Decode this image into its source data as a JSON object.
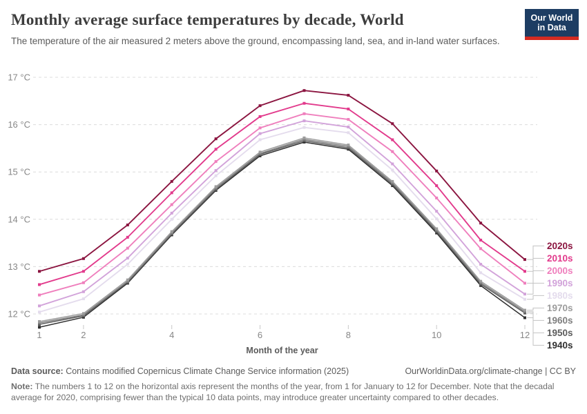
{
  "header": {
    "title": "Monthly average surface temperatures by decade, World",
    "subtitle": "The temperature of the air measured 2 meters above the ground, encompassing land, sea, and in-land water surfaces.",
    "logo": {
      "line1": "Our World",
      "line2": "in Data",
      "bg_color": "#1d3d63",
      "bar_color": "#d42b21"
    }
  },
  "chart_data": {
    "type": "line",
    "title": "Monthly average surface temperatures by decade, World",
    "xlabel": "Month of the year",
    "ylabel": "",
    "x": [
      1,
      2,
      3,
      4,
      5,
      6,
      7,
      8,
      9,
      10,
      11,
      12
    ],
    "x_axis_ticks": [
      1,
      2,
      4,
      6,
      8,
      10,
      12
    ],
    "y_ticks": [
      {
        "value": 12,
        "label": "12 °C"
      },
      {
        "value": 13,
        "label": "13 °C"
      },
      {
        "value": 14,
        "label": "14 °C"
      },
      {
        "value": 15,
        "label": "15 °C"
      },
      {
        "value": 16,
        "label": "16 °C"
      },
      {
        "value": 17,
        "label": "17 °C"
      }
    ],
    "ylim": [
      11.6,
      17.1
    ],
    "grid": "horizontal-dashed",
    "markers": "square",
    "legend_position": "right-end-labels",
    "series": [
      {
        "name": "2020s",
        "color": "#8b1540",
        "values": [
          12.9,
          13.17,
          13.88,
          14.8,
          15.7,
          16.4,
          16.72,
          16.62,
          16.02,
          15.02,
          13.92,
          13.15
        ]
      },
      {
        "name": "2010s",
        "color": "#e23a8c",
        "values": [
          12.62,
          12.9,
          13.62,
          14.56,
          15.48,
          16.17,
          16.45,
          16.33,
          15.68,
          14.71,
          13.56,
          12.9
        ]
      },
      {
        "name": "2000s",
        "color": "#ef7fbd",
        "values": [
          12.4,
          12.66,
          13.39,
          14.31,
          15.22,
          15.93,
          16.23,
          16.11,
          15.43,
          14.45,
          13.38,
          12.65
        ]
      },
      {
        "name": "1990s",
        "color": "#d2a3da",
        "values": [
          12.17,
          12.47,
          13.18,
          14.13,
          15.03,
          15.81,
          16.08,
          15.95,
          15.17,
          14.17,
          13.05,
          12.42
        ]
      },
      {
        "name": "1980s",
        "color": "#e4dced",
        "values": [
          12.04,
          12.32,
          13.05,
          14.0,
          14.92,
          15.68,
          15.94,
          15.83,
          15.04,
          14.01,
          12.87,
          12.31
        ]
      },
      {
        "name": "1970s",
        "color": "#9c9c9c",
        "values": [
          11.84,
          12.01,
          12.72,
          13.74,
          14.69,
          15.42,
          15.72,
          15.57,
          14.8,
          13.8,
          12.69,
          12.08
        ]
      },
      {
        "name": "1960s",
        "color": "#7f7f7f",
        "values": [
          11.81,
          11.98,
          12.69,
          13.71,
          14.66,
          15.39,
          15.69,
          15.54,
          14.77,
          13.77,
          12.66,
          12.05
        ]
      },
      {
        "name": "1950s",
        "color": "#5c5c5c",
        "values": [
          11.78,
          11.96,
          12.67,
          13.69,
          14.63,
          15.37,
          15.66,
          15.51,
          14.74,
          13.74,
          12.63,
          12.02
        ]
      },
      {
        "name": "1940s",
        "color": "#2f2f2f",
        "values": [
          11.72,
          11.93,
          12.65,
          13.67,
          14.61,
          15.34,
          15.63,
          15.48,
          14.71,
          13.71,
          12.6,
          11.92
        ]
      }
    ],
    "style": {
      "grid_color": "#dcdcdc",
      "tick_color": "#c8c8c8",
      "tick_text_color": "#878787",
      "axis_title_color": "#5b5b5b",
      "connector_color": "#c2c2c2"
    }
  },
  "footer": {
    "datasource_label": "Data source:",
    "datasource_text": " Contains modified Copernicus Climate Change Service information (2025)",
    "link_text": "OurWorldinData.org/climate-change | CC BY",
    "note_label": "Note:",
    "note_text": " The numbers 1 to 12 on the horizontal axis represent the months of the year, from 1 for January to 12 for December. Note that the decadal average for 2020, comprising fewer than the typical 10 data points, may introduce greater uncertainty compared to other decades."
  }
}
